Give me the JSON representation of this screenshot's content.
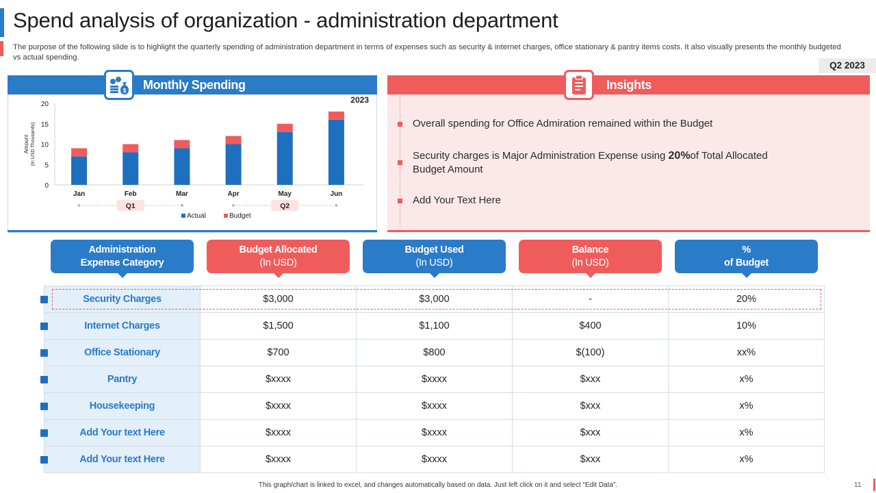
{
  "header": {
    "title": "Spend analysis of organization - administration department",
    "subtitle": "The purpose of the following slide is to highlight the quarterly spending of administration department in terms of expenses such as security & internet charges, office stationary & pantry items costs. It also visually presents the monthly budgeted vs actual spending.",
    "quarter_badge": "Q2 2023"
  },
  "monthly_panel": {
    "title": "Monthly Spending",
    "icon": "money-bag-icon"
  },
  "insights_panel": {
    "title": "Insights",
    "icon": "clipboard-icon",
    "items": [
      {
        "text": "Overall spending for Office Admiration remained within the Budget"
      },
      {
        "text_before": "Security charges is Major Administration Expense using ",
        "highlight": "20%",
        "text_after": "of Total Allocated Budget Amount"
      },
      {
        "text": "Add Your Text Here"
      }
    ]
  },
  "chart_data": {
    "type": "bar",
    "stacked": true,
    "year_label": "2023",
    "categories": [
      "Jan",
      "Feb",
      "Mar",
      "Apr",
      "May",
      "Jun"
    ],
    "series": [
      {
        "name": "Actual",
        "values": [
          7,
          8,
          9,
          10,
          13,
          16
        ],
        "color": "#1f6fbf"
      },
      {
        "name": "Budget",
        "values": [
          2,
          2,
          2,
          2,
          2,
          2
        ],
        "color": "#f05c5c"
      }
    ],
    "ylabel": "Amount\n(In USD Thousands)",
    "ylim": [
      0,
      20
    ],
    "yticks": [
      0,
      5,
      10,
      15,
      20
    ],
    "groups": [
      {
        "label": "Q1",
        "categories": [
          "Jan",
          "Feb",
          "Mar"
        ]
      },
      {
        "label": "Q2",
        "categories": [
          "Apr",
          "May",
          "Jun"
        ]
      }
    ],
    "legend_position": "bottom"
  },
  "table": {
    "headers": [
      {
        "title": "Administration",
        "sub": "Expense Category",
        "color": "blue"
      },
      {
        "title": "Budget Allocated",
        "sub": "(In USD)",
        "color": "red"
      },
      {
        "title": "Budget Used",
        "sub": "(In USD)",
        "color": "blue"
      },
      {
        "title": "Balance",
        "sub": "(In USD)",
        "color": "red"
      },
      {
        "title": "%",
        "sub": "of Budget",
        "color": "blue"
      }
    ],
    "rows": [
      {
        "category": "Security Charges",
        "allocated": "$3,000",
        "used": "$3,000",
        "balance": "-",
        "pct": "20%"
      },
      {
        "category": "Internet Charges",
        "allocated": "$1,500",
        "used": "$1,100",
        "balance": "$400",
        "pct": "10%"
      },
      {
        "category": "Office Stationary",
        "allocated": "$700",
        "used": "$800",
        "balance": "$(100)",
        "pct": "xx%"
      },
      {
        "category": "Pantry",
        "allocated": "$xxxx",
        "used": "$xxxx",
        "balance": "$xxx",
        "pct": "x%"
      },
      {
        "category": "Housekeeping",
        "allocated": "$xxxx",
        "used": "$xxxx",
        "balance": "$xxx",
        "pct": "x%"
      },
      {
        "category": "Add Your text Here",
        "allocated": "$xxxx",
        "used": "$xxxx",
        "balance": "$xxx",
        "pct": "x%"
      },
      {
        "category": "Add Your text Here",
        "allocated": "$xxxx",
        "used": "$xxxx",
        "balance": "$xxx",
        "pct": "x%"
      }
    ]
  },
  "footer": {
    "note": "This graph/chart is linked to excel, and changes automatically based on data. Just left click on it and select “Edit Data”.",
    "page_number": "11"
  }
}
